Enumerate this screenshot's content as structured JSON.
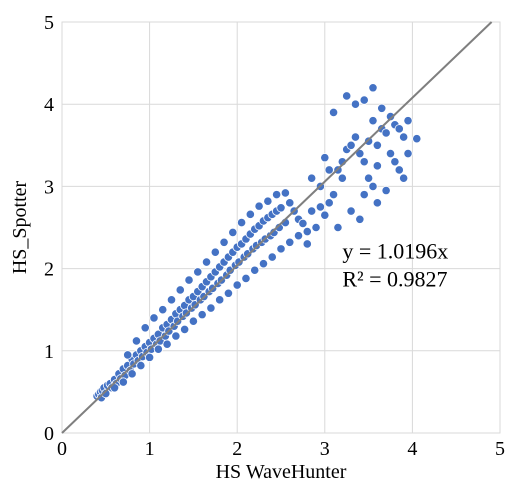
{
  "chart_data": {
    "type": "scatter",
    "title": "",
    "xlabel": "HS  WaveHunter",
    "ylabel": "HS_Spotter",
    "xlim": [
      0,
      5
    ],
    "ylim": [
      0,
      5
    ],
    "xticks": [
      "0",
      "1",
      "2",
      "3",
      "4",
      "5"
    ],
    "yticks": [
      "0",
      "1",
      "2",
      "3",
      "4",
      "5"
    ],
    "grid": true,
    "legend": "none",
    "trendline": {
      "slope": 1.0196,
      "intercept": 0,
      "equation_label": "y = 1.0196x",
      "r2_label": "R² = 0.9827",
      "color": "#7f7f7f"
    },
    "series": [
      {
        "marker_color": "#4472c4",
        "marker_edge": "#ffffff",
        "points": [
          [
            0.4,
            0.45
          ],
          [
            0.42,
            0.47
          ],
          [
            0.44,
            0.5
          ],
          [
            0.45,
            0.43
          ],
          [
            0.46,
            0.52
          ],
          [
            0.48,
            0.55
          ],
          [
            0.5,
            0.48
          ],
          [
            0.52,
            0.58
          ],
          [
            0.55,
            0.6
          ],
          [
            0.57,
            0.55
          ],
          [
            0.6,
            0.65
          ],
          [
            0.62,
            0.6
          ],
          [
            0.65,
            0.72
          ],
          [
            0.67,
            0.66
          ],
          [
            0.7,
            0.78
          ],
          [
            0.72,
            0.7
          ],
          [
            0.75,
            0.82
          ],
          [
            0.78,
            0.76
          ],
          [
            0.8,
            0.9
          ],
          [
            0.82,
            0.84
          ],
          [
            0.85,
            0.95
          ],
          [
            0.87,
            0.88
          ],
          [
            0.9,
            1.0
          ],
          [
            0.92,
            0.93
          ],
          [
            0.95,
            1.05
          ],
          [
            0.97,
            0.98
          ],
          [
            1.0,
            1.1
          ],
          [
            1.02,
            1.02
          ],
          [
            1.05,
            1.15
          ],
          [
            1.08,
            1.08
          ],
          [
            1.1,
            1.2
          ],
          [
            1.12,
            1.12
          ],
          [
            1.15,
            1.28
          ],
          [
            1.18,
            1.18
          ],
          [
            1.2,
            1.32
          ],
          [
            1.22,
            1.24
          ],
          [
            1.25,
            1.38
          ],
          [
            1.28,
            1.3
          ],
          [
            1.3,
            1.45
          ],
          [
            1.32,
            1.36
          ],
          [
            1.35,
            1.5
          ],
          [
            1.38,
            1.42
          ],
          [
            1.4,
            1.55
          ],
          [
            1.42,
            1.46
          ],
          [
            1.45,
            1.62
          ],
          [
            1.48,
            1.52
          ],
          [
            1.5,
            1.66
          ],
          [
            1.52,
            1.56
          ],
          [
            1.55,
            1.72
          ],
          [
            1.58,
            1.62
          ],
          [
            1.6,
            1.78
          ],
          [
            1.62,
            1.66
          ],
          [
            1.65,
            1.84
          ],
          [
            1.68,
            1.72
          ],
          [
            1.7,
            1.9
          ],
          [
            1.72,
            1.76
          ],
          [
            1.75,
            1.96
          ],
          [
            1.78,
            1.82
          ],
          [
            1.8,
            2.02
          ],
          [
            1.82,
            1.86
          ],
          [
            1.85,
            2.08
          ],
          [
            1.88,
            1.92
          ],
          [
            1.9,
            2.14
          ],
          [
            1.92,
            1.98
          ],
          [
            1.95,
            2.2
          ],
          [
            1.98,
            2.04
          ],
          [
            2.0,
            2.26
          ],
          [
            2.02,
            2.08
          ],
          [
            2.05,
            2.3
          ],
          [
            2.08,
            2.14
          ],
          [
            2.1,
            2.36
          ],
          [
            2.12,
            2.18
          ],
          [
            2.15,
            2.42
          ],
          [
            2.18,
            2.24
          ],
          [
            2.2,
            2.48
          ],
          [
            2.22,
            2.28
          ],
          [
            2.25,
            2.52
          ],
          [
            2.28,
            2.32
          ],
          [
            2.3,
            2.58
          ],
          [
            2.32,
            2.36
          ],
          [
            2.35,
            2.62
          ],
          [
            2.38,
            2.4
          ],
          [
            2.4,
            2.66
          ],
          [
            2.42,
            2.44
          ],
          [
            2.45,
            2.7
          ],
          [
            2.48,
            2.5
          ],
          [
            2.5,
            2.74
          ],
          [
            2.55,
            2.56
          ],
          [
            0.6,
            0.55
          ],
          [
            0.7,
            0.62
          ],
          [
            0.8,
            0.72
          ],
          [
            0.9,
            0.82
          ],
          [
            1.0,
            0.92
          ],
          [
            1.1,
            1.02
          ],
          [
            1.2,
            1.08
          ],
          [
            1.3,
            1.18
          ],
          [
            1.4,
            1.26
          ],
          [
            1.5,
            1.36
          ],
          [
            1.6,
            1.44
          ],
          [
            1.7,
            1.52
          ],
          [
            1.8,
            1.62
          ],
          [
            1.9,
            1.7
          ],
          [
            2.0,
            1.8
          ],
          [
            2.1,
            1.88
          ],
          [
            2.2,
            1.98
          ],
          [
            2.3,
            2.06
          ],
          [
            2.4,
            2.14
          ],
          [
            2.5,
            2.24
          ],
          [
            2.6,
            2.32
          ],
          [
            2.7,
            2.4
          ],
          [
            2.8,
            2.3
          ],
          [
            2.9,
            2.5
          ],
          [
            0.75,
            0.95
          ],
          [
            0.85,
            1.12
          ],
          [
            0.95,
            1.28
          ],
          [
            1.05,
            1.4
          ],
          [
            1.15,
            1.5
          ],
          [
            1.25,
            1.62
          ],
          [
            1.35,
            1.74
          ],
          [
            1.45,
            1.86
          ],
          [
            1.55,
            1.96
          ],
          [
            1.65,
            2.08
          ],
          [
            1.75,
            2.2
          ],
          [
            1.85,
            2.32
          ],
          [
            1.95,
            2.44
          ],
          [
            2.05,
            2.56
          ],
          [
            2.15,
            2.66
          ],
          [
            2.25,
            2.76
          ],
          [
            2.35,
            2.82
          ],
          [
            2.45,
            2.9
          ],
          [
            2.55,
            2.92
          ],
          [
            2.6,
            2.8
          ],
          [
            2.65,
            2.7
          ],
          [
            2.7,
            2.6
          ],
          [
            2.75,
            2.55
          ],
          [
            2.8,
            2.45
          ],
          [
            2.85,
            2.7
          ],
          [
            2.95,
            2.75
          ],
          [
            3.0,
            2.65
          ],
          [
            3.05,
            2.8
          ],
          [
            3.1,
            2.9
          ],
          [
            3.15,
            3.2
          ],
          [
            3.2,
            3.3
          ],
          [
            3.25,
            3.45
          ],
          [
            3.3,
            3.5
          ],
          [
            3.35,
            3.6
          ],
          [
            3.4,
            3.4
          ],
          [
            3.45,
            3.3
          ],
          [
            3.5,
            3.55
          ],
          [
            3.55,
            3.8
          ],
          [
            3.6,
            3.5
          ],
          [
            3.65,
            3.7
          ],
          [
            3.7,
            3.65
          ],
          [
            3.75,
            3.4
          ],
          [
            3.8,
            3.75
          ],
          [
            3.85,
            3.2
          ],
          [
            3.9,
            3.6
          ],
          [
            3.95,
            3.8
          ],
          [
            4.05,
            3.58
          ],
          [
            3.25,
            4.1
          ],
          [
            3.45,
            4.05
          ],
          [
            3.55,
            4.2
          ],
          [
            3.65,
            3.95
          ],
          [
            3.75,
            3.85
          ],
          [
            3.85,
            3.7
          ],
          [
            3.1,
            3.9
          ],
          [
            3.35,
            4.0
          ],
          [
            3.6,
            2.8
          ],
          [
            3.7,
            2.95
          ],
          [
            3.3,
            2.7
          ],
          [
            3.4,
            2.6
          ],
          [
            3.2,
            3.1
          ],
          [
            3.0,
            3.35
          ],
          [
            2.95,
            3.0
          ],
          [
            2.85,
            3.1
          ],
          [
            3.05,
            3.2
          ],
          [
            3.5,
            3.1
          ],
          [
            3.6,
            3.25
          ],
          [
            3.8,
            3.3
          ],
          [
            3.95,
            3.4
          ],
          [
            3.9,
            3.1
          ],
          [
            3.45,
            2.9
          ],
          [
            3.55,
            3.0
          ],
          [
            3.15,
            2.5
          ]
        ]
      }
    ]
  }
}
